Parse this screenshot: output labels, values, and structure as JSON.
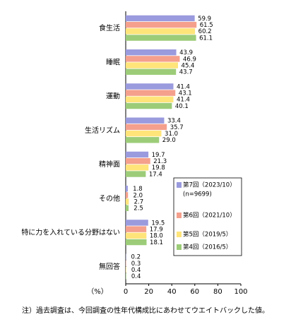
{
  "chart_data": {
    "type": "hbar",
    "categories": [
      "食生活",
      "睡眠",
      "運動",
      "生活リズム",
      "精神面",
      "その他",
      "特に力を入れている分野はない",
      "無回答"
    ],
    "series": [
      {
        "name": "第7回（2023/10）",
        "color": "#9a9ade",
        "values": [
          59.9,
          43.9,
          41.4,
          33.4,
          19.7,
          1.8,
          19.5,
          0.2
        ],
        "value_labels": [
          "59.9",
          "43.9",
          "41.4",
          "33.4",
          "19.7",
          "1.8",
          "19.5",
          "0.2"
        ]
      },
      {
        "name": "第6回（2021/10）",
        "color": "#f4a08c",
        "values": [
          61.5,
          46.9,
          43.1,
          35.7,
          21.3,
          2.0,
          17.9,
          0.3
        ],
        "value_labels": [
          "61.5",
          "46.9",
          "43.1",
          "35.7",
          "21.3",
          "2.0",
          "17.9",
          "0.3"
        ]
      },
      {
        "name": "第5回（2019/5）",
        "color": "#ffe47a",
        "values": [
          60.2,
          45.4,
          41.4,
          31.0,
          19.8,
          2.7,
          18.0,
          0.4
        ],
        "value_labels": [
          "60.2",
          "45.4",
          "41.4",
          "31.0",
          "19.8",
          "2.7",
          "18.0",
          "0.4"
        ]
      },
      {
        "name": "第4回（2016/5）",
        "color": "#9ccc78",
        "values": [
          61.1,
          43.7,
          40.1,
          29.0,
          17.4,
          2.5,
          18.1,
          0.4
        ],
        "value_labels": [
          "61.1",
          "43.7",
          "40.1",
          "29.0",
          "17.4",
          "2.5",
          "18.1",
          "0.4"
        ]
      }
    ],
    "legend_note": "(n=9699)",
    "xlabel": "（%）",
    "xlim": [
      0,
      100
    ],
    "xticks": [
      0,
      20,
      40,
      60,
      80,
      100
    ],
    "footnote": "注）過去調査は、今回調査の性年代構成比にあわせてウエイトバックした値。"
  }
}
